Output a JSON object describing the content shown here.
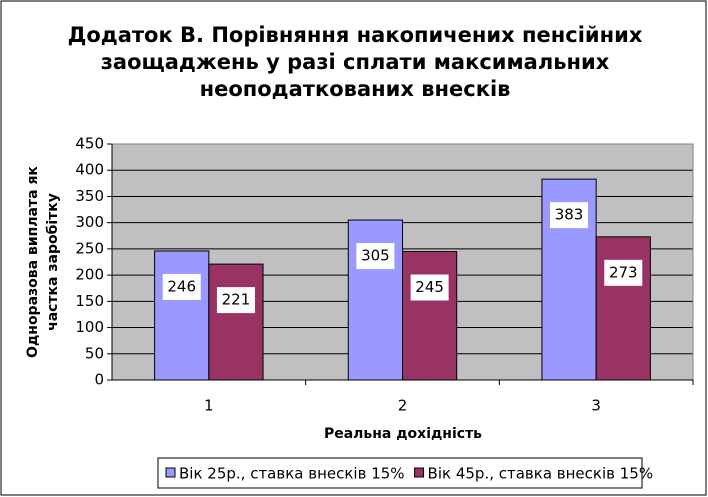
{
  "chart_data": {
    "type": "bar",
    "title": [
      "Додаток В. Порівняння накопичених пенсійних",
      "заощаджень у разі сплати максимальних",
      "неоподаткованих внесків"
    ],
    "x_label": "Реальна дохідність",
    "y_label": [
      "Одноразова виплата як",
      "частка заробітку"
    ],
    "categories": [
      "1",
      "2",
      "3"
    ],
    "series": [
      {
        "name": "Вік 25р., ставка внесків 15%",
        "color": "#9999ff",
        "values": [
          246,
          305,
          383
        ]
      },
      {
        "name": "Вік 45р., ставка внесків 15%",
        "color": "#993366",
        "values": [
          221,
          245,
          273
        ]
      }
    ],
    "ylim": [
      0,
      450
    ],
    "yticks": [
      0,
      50,
      100,
      150,
      200,
      250,
      300,
      350,
      400,
      450
    ],
    "grid": true,
    "legend": "bottom",
    "plot_background": "#c0c0c0"
  }
}
